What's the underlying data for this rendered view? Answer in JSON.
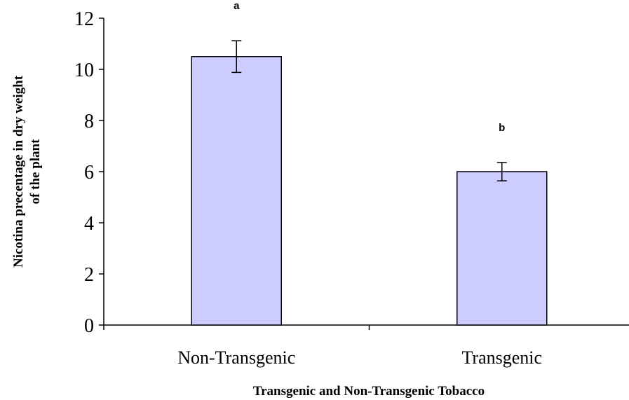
{
  "chart_data": {
    "type": "bar",
    "categories": [
      "Non-Transgenic",
      "Transgenic"
    ],
    "values": [
      10.5,
      6.0
    ],
    "error": [
      0.62,
      0.36
    ],
    "significance": [
      "a",
      "b"
    ],
    "xlabel": "Transgenic and Non-Transgenic Tobacco",
    "ylabel_lines": [
      "Nicotina precentage in dry weight",
      "of  the plant"
    ],
    "ylim": [
      0,
      12
    ],
    "yticks": [
      0,
      2,
      4,
      6,
      8,
      10,
      12
    ],
    "bar_color": "#ccccff",
    "grid": false,
    "legend": "none"
  }
}
